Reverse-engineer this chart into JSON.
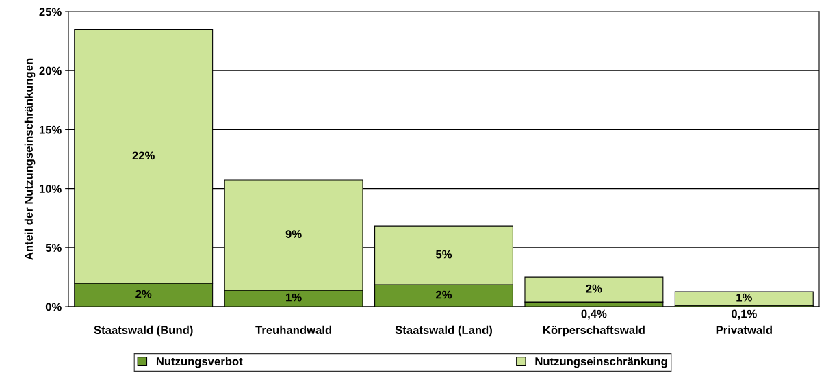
{
  "chart_data": {
    "type": "bar",
    "stacked": true,
    "ylabel": "Anteil der Nutzungseinschränkungen",
    "categories": [
      "Staatswald (Bund)",
      "Treuhandwald",
      "Staatswald (Land)",
      "Körperschaftswald",
      "Privatwald"
    ],
    "series": [
      {
        "name": "Nutzungsverbot",
        "color": "#6b9a2c",
        "values": [
          1.97,
          1.39,
          1.86,
          0.4,
          0.1
        ],
        "value_labels": [
          "2%",
          "1%",
          "2%",
          "0,4%",
          "0,1%"
        ]
      },
      {
        "name": "Nutzungseinschränkung",
        "color": "#cde498",
        "values": [
          21.5,
          9.34,
          4.98,
          2.09,
          1.18
        ],
        "value_labels": [
          "22%",
          "9%",
          "5%",
          "2%",
          "1%"
        ]
      }
    ],
    "ylim": [
      0,
      25
    ],
    "yticks": [
      {
        "value": 0,
        "label": "0%"
      },
      {
        "value": 5,
        "label": "5%"
      },
      {
        "value": 10,
        "label": "10%"
      },
      {
        "value": 15,
        "label": "15%"
      },
      {
        "value": 20,
        "label": "20%"
      },
      {
        "value": 25,
        "label": "25%"
      }
    ],
    "grid": "y",
    "legend": "bottom"
  }
}
